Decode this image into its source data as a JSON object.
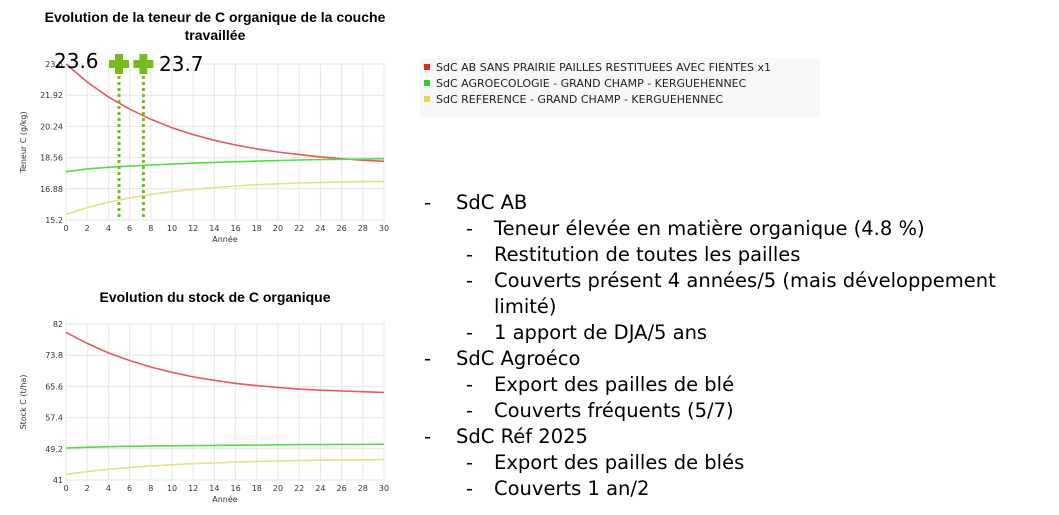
{
  "chart_data": [
    {
      "type": "line",
      "title": "Evolution de la teneur de C organique de la couche travaillée",
      "xlabel": "Année",
      "ylabel": "Teneur C (g/kg)",
      "xlim": [
        0,
        30
      ],
      "ylim": [
        15.2,
        23.6
      ],
      "x_ticks": [
        0,
        2,
        4,
        6,
        8,
        10,
        12,
        14,
        16,
        18,
        20,
        22,
        24,
        26,
        28,
        30
      ],
      "y_ticks": [
        "15.2",
        "16.88",
        "18.56",
        "20.24",
        "21.92",
        "23.6"
      ],
      "grid": true,
      "x": [
        0,
        2,
        4,
        6,
        8,
        10,
        12,
        14,
        16,
        18,
        20,
        22,
        24,
        26,
        28,
        30
      ],
      "series": [
        {
          "color": "#e8585a",
          "values": [
            23.6,
            22.63,
            21.83,
            21.17,
            20.62,
            20.17,
            19.8,
            19.49,
            19.24,
            19.03,
            18.86,
            18.72,
            18.6,
            18.5,
            18.42,
            18.36
          ]
        },
        {
          "color": "#55dd44",
          "values": [
            17.8,
            17.95,
            18.04,
            18.1,
            18.16,
            18.21,
            18.26,
            18.3,
            18.34,
            18.37,
            18.4,
            18.43,
            18.45,
            18.47,
            18.48,
            18.5
          ]
        },
        {
          "color": "#e6e08a",
          "values": [
            15.5,
            15.87,
            16.16,
            16.39,
            16.58,
            16.73,
            16.85,
            16.95,
            17.03,
            17.1,
            17.15,
            17.19,
            17.22,
            17.25,
            17.27,
            17.28
          ]
        }
      ],
      "markers": [
        {
          "x": 5,
          "value": "23.6",
          "color": "#76bc21"
        },
        {
          "x": 7.3,
          "value": "23.7",
          "color": "#76bc21"
        }
      ]
    },
    {
      "type": "line",
      "title": "Evolution du stock de C organique",
      "xlabel": "Année",
      "ylabel": "Stock C (t/ha)",
      "xlim": [
        0,
        30
      ],
      "ylim": [
        41,
        82
      ],
      "x_ticks": [
        0,
        2,
        4,
        6,
        8,
        10,
        12,
        14,
        16,
        18,
        20,
        22,
        24,
        26,
        28,
        30
      ],
      "y_ticks": [
        "41",
        "49.2",
        "57.4",
        "65.6",
        "73.8",
        "82"
      ],
      "grid": true,
      "x": [
        0,
        2,
        4,
        6,
        8,
        10,
        12,
        14,
        16,
        18,
        20,
        22,
        24,
        26,
        28,
        30
      ],
      "series": [
        {
          "color": "#e8585a",
          "values": [
            79.8,
            76.9,
            74.4,
            72.4,
            70.7,
            69.3,
            68.1,
            67.2,
            66.4,
            65.8,
            65.3,
            64.9,
            64.6,
            64.4,
            64.2,
            64.0
          ]
        },
        {
          "color": "#55dd44",
          "values": [
            49.4,
            49.6,
            49.75,
            49.85,
            49.95,
            50.0,
            50.05,
            50.1,
            50.15,
            50.2,
            50.25,
            50.3,
            50.3,
            50.35,
            50.35,
            50.4
          ]
        },
        {
          "color": "#e6e08a",
          "values": [
            42.5,
            43.2,
            43.8,
            44.3,
            44.7,
            45.0,
            45.3,
            45.5,
            45.7,
            45.85,
            46.0,
            46.1,
            46.2,
            46.25,
            46.3,
            46.35
          ]
        }
      ]
    }
  ],
  "legend": [
    {
      "label": "SdC AB SANS PRAIRIE PAILLES RESTITUEES AVEC FIENTES x1",
      "color": "#ee2222"
    },
    {
      "label": "SdC AGROECOLOGIE - GRAND CHAMP - KERGUEHENNEC",
      "color": "#33cc33"
    },
    {
      "label": "SdC REFERENCE - GRAND CHAMP - KERGUEHENNEC",
      "color": "#e6d84a"
    }
  ],
  "notes": [
    {
      "label": "SdC AB",
      "subs": [
        "Teneur élevée en matière organique (4.8 %)",
        "Restitution de toutes les pailles",
        "Couverts présent 4 années/5 (mais développement",
        "1 apport de DJA/5 ans"
      ],
      "sub_continuation": "limité)"
    },
    {
      "label": "SdC Agroéco",
      "subs": [
        "Export des pailles de blé",
        "Couverts fréquents (5/7)"
      ]
    },
    {
      "label": "SdC Réf 2025",
      "subs": [
        "Export des pailles de blés",
        "Couverts 1 an/2"
      ]
    }
  ],
  "dash": "-"
}
